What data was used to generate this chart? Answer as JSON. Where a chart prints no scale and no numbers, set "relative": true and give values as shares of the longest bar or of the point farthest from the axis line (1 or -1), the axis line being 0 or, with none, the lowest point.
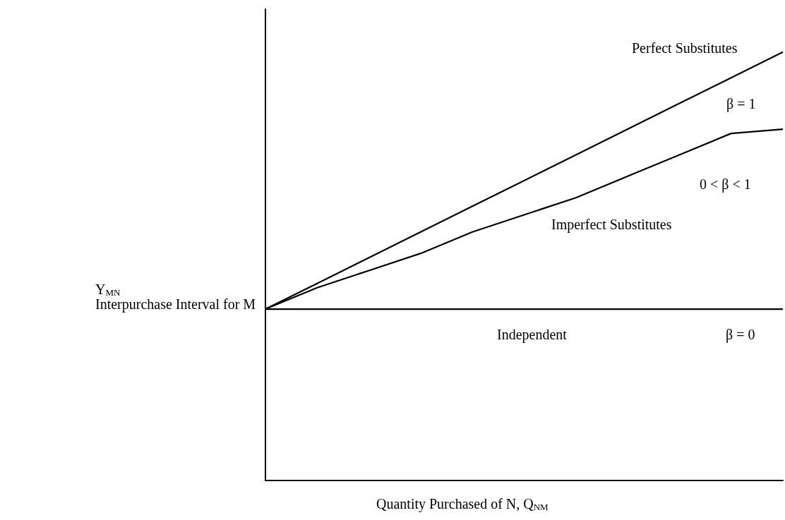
{
  "chart_data": {
    "type": "line",
    "relative": true,
    "xlabel": "Quantity Purchased of N, Q$_{NM}$",
    "ylabel": "Y$_{MN}$\nInterpurchase Interval for M",
    "categories": [
      null,
      null,
      null,
      null,
      null,
      null,
      null,
      null,
      null,
      null,
      null
    ],
    "series": [
      {
        "name": "Perfect Substitutes",
        "color": "#000000",
        "values": [
          0.4,
          0.46,
          0.52,
          0.58,
          0.64,
          0.7,
          0.76,
          0.82,
          0.88,
          0.94,
          1.0
        ]
      },
      {
        "name": "Imperfect Substitutes",
        "color": "#000000",
        "values": [
          0.4,
          0.45,
          0.49,
          0.53,
          0.58,
          0.62,
          0.66,
          0.71,
          0.76,
          0.81,
          0.82
        ]
      },
      {
        "name": "Independent",
        "color": "#000000",
        "values": [
          0.4,
          0.4,
          0.4,
          0.4,
          0.4,
          0.4,
          0.4,
          0.4,
          0.4,
          0.4,
          0.4
        ]
      }
    ],
    "annotations": [
      "β = 1",
      "0 < β < 1",
      "β = 0"
    ],
    "legend": false,
    "grid": false
  }
}
